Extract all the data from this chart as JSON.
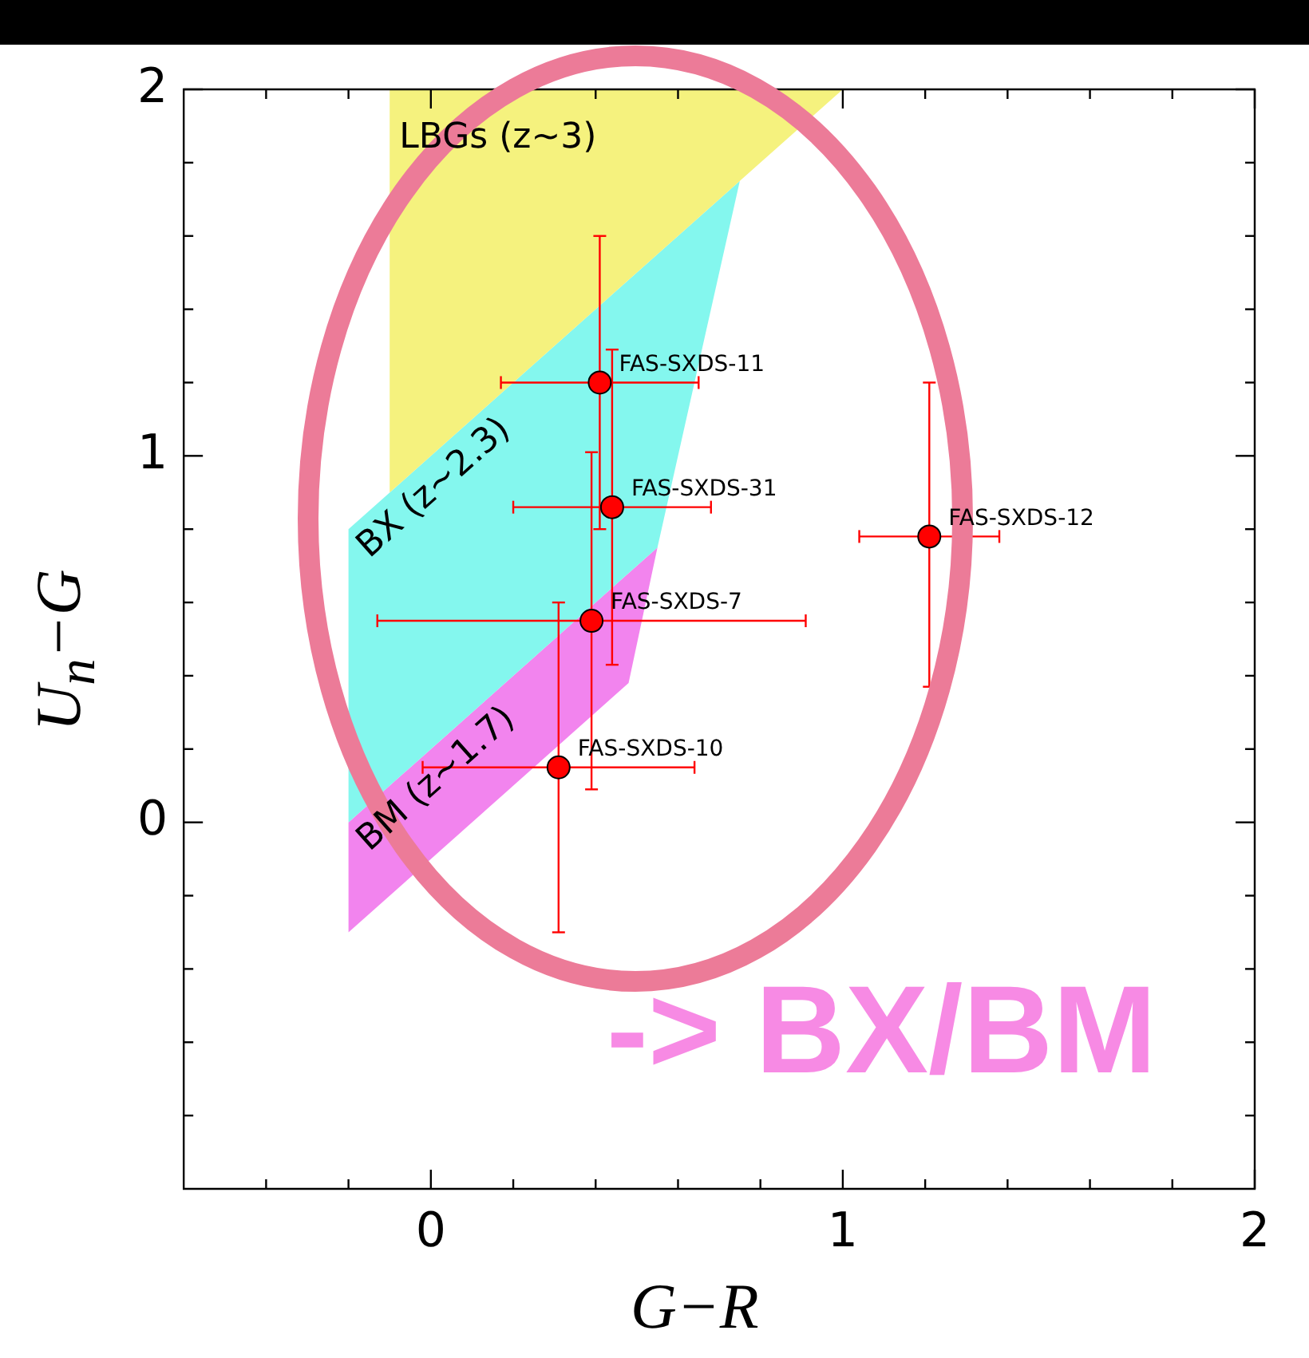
{
  "chart_data": {
    "type": "scatter",
    "xlabel": "G−R",
    "ylabel": "U$_{n}$−G",
    "xlim": [
      -0.6,
      2
    ],
    "ylim": [
      -1,
      2
    ],
    "xticks": [
      {
        "value": -0.4,
        "label": null
      },
      {
        "value": -0.2,
        "label": null
      },
      0,
      {
        "value": 0.2,
        "label": null
      },
      {
        "value": 0.4,
        "label": null
      },
      {
        "value": 0.6,
        "label": null
      },
      {
        "value": 0.8,
        "label": null
      },
      1,
      {
        "value": 1.2,
        "label": null
      },
      {
        "value": 1.4,
        "label": null
      },
      {
        "value": 1.6,
        "label": null
      },
      {
        "value": 1.8,
        "label": null
      },
      2
    ],
    "yticks": [
      {
        "value": -0.8,
        "label": null
      },
      {
        "value": -0.6,
        "label": null
      },
      {
        "value": -0.4,
        "label": null
      },
      {
        "value": -0.2,
        "label": null
      },
      0,
      {
        "value": 0.2,
        "label": null
      },
      {
        "value": 0.4,
        "label": null
      },
      {
        "value": 0.6,
        "label": null
      },
      {
        "value": 0.8,
        "label": null
      },
      1,
      {
        "value": 1.2,
        "label": null
      },
      {
        "value": 1.4,
        "label": null
      },
      {
        "value": 1.6,
        "label": null
      },
      {
        "value": 1.8,
        "label": null
      },
      2
    ],
    "marker": "circle",
    "series": [
      {
        "type": "area",
        "name": "LBGs (z~3)",
        "color": "#f5f27e",
        "marker": "none",
        "x": [
          -0.1,
          1.0,
          0.75,
          -0.1
        ],
        "values": [
          2,
          2,
          1.75,
          0.9
        ]
      },
      {
        "type": "area",
        "name": "BX (z~2.3)",
        "color": "#84f7ee",
        "marker": "none",
        "x": [
          -0.2,
          0.75,
          0.55,
          -0.2
        ],
        "values": [
          0.8,
          1.75,
          0.75,
          0
        ]
      },
      {
        "type": "area",
        "name": "BM (z~1.7)",
        "color": "#f284ee",
        "marker": "none",
        "x": [
          -0.2,
          0.55,
          0.48,
          -0.2
        ],
        "values": [
          0,
          0.75,
          0.38,
          -0.3
        ]
      },
      {
        "type": "scatter",
        "color": "#ff0000",
        "x": [
          0.41,
          0.44,
          1.21,
          0.39,
          0.31
        ],
        "values": [
          1.2,
          0.86,
          0.78,
          0.55,
          0.15
        ],
        "errors": [
          0.4,
          0.43,
          [
            0.37,
            1.2
          ],
          0.46,
          0.45
        ],
        "xerrors": [
          0.24,
          0.24,
          0.17,
          0.52,
          0.33
        ]
      }
    ],
    "annotations": [
      {
        "text": "FAS-SXDS-11",
        "x": 0.41,
        "y": 1.2
      },
      {
        "text": "FAS-SXDS-31",
        "x": 0.44,
        "y": 0.86
      },
      {
        "text": "FAS-SXDS-12",
        "x": 1.21,
        "y": 0.78
      },
      {
        "text": "FAS-SXDS-7",
        "x": 0.39,
        "y": 0.55
      },
      {
        "text": "FAS-SXDS-10",
        "x": 0.31,
        "y": 0.15
      },
      "-> BX/BM"
    ]
  }
}
